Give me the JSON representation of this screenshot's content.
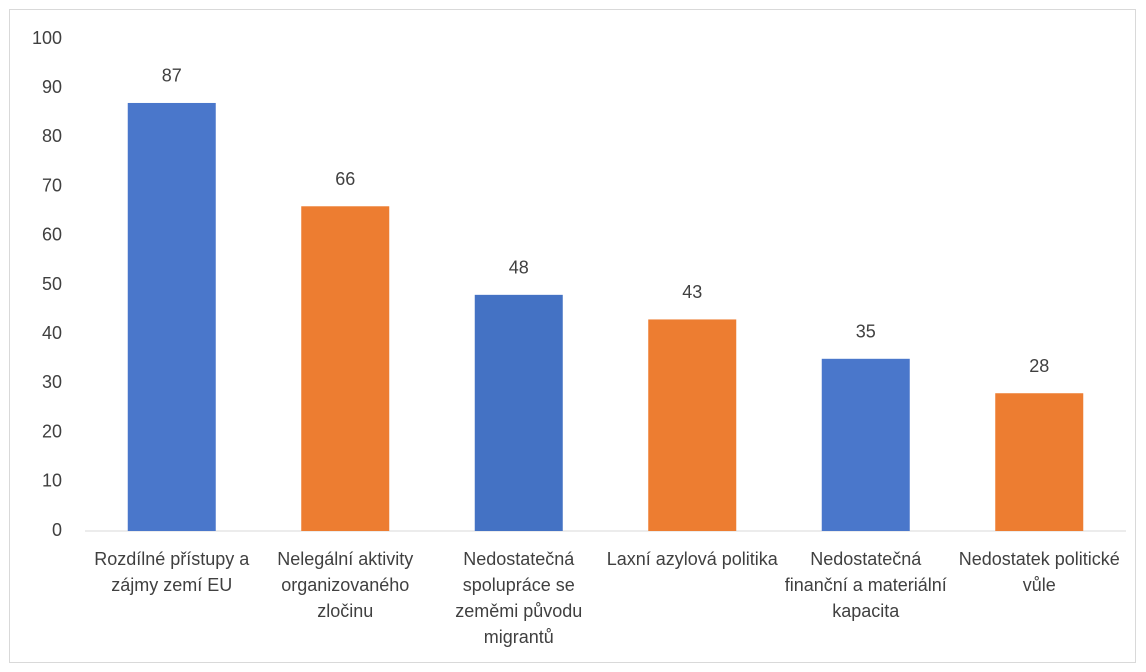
{
  "chart_data": {
    "type": "bar",
    "categories": [
      "Rozdílné přístupy a zájmy zemí EU",
      "Nelegální aktivity organizovaného zločinu",
      "Nedostatečná spolupráce se zeměmi původu migrantů",
      "Laxní azylová politika",
      "Nedostatečná finanční a materiální kapacita",
      "Nedostatek politické vůle"
    ],
    "values": [
      87,
      66,
      48,
      43,
      35,
      28
    ],
    "colors": [
      "#4a77cb",
      "#ed7d31",
      "#4472c4",
      "#ed7d31",
      "#4a77cb",
      "#ed7d31"
    ],
    "ylim": [
      0,
      100
    ],
    "yticks": [
      0,
      10,
      20,
      30,
      40,
      50,
      60,
      70,
      80,
      90,
      100
    ],
    "grid": false
  }
}
